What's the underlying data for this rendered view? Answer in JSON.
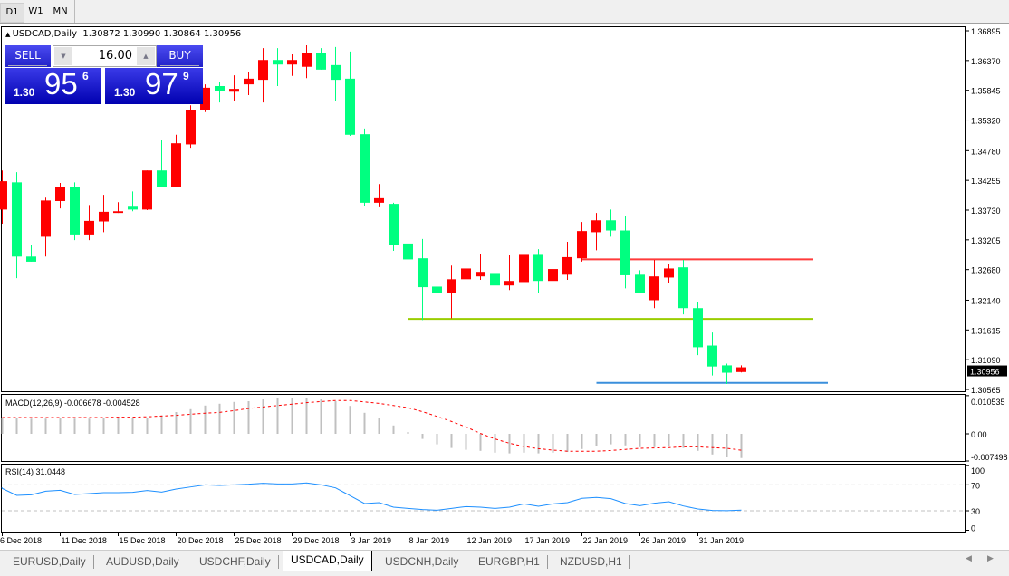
{
  "toolbar": {
    "timeframes": [
      "D1",
      "W1",
      "MN"
    ],
    "active": 0
  },
  "chart": {
    "header_symbol": "USDCAD,Daily",
    "header_ohlc": "1.30872 1.30990 1.30864 1.30956"
  },
  "trade_panel": {
    "sell_label": "SELL",
    "buy_label": "BUY",
    "volume": "16.00",
    "bid": {
      "prefix": "1.30",
      "big": "95",
      "small": "6"
    },
    "ask": {
      "prefix": "1.30",
      "big": "97",
      "small": "9"
    }
  },
  "colors": {
    "bull": "#ff0000",
    "bear": "#00ff80",
    "macd_hist": "#c0c0c0",
    "macd_signal": "#ff0000",
    "rsi": "#1e90ff"
  },
  "chart_data": [
    {
      "type": "candlestick",
      "current_price": "1.30956",
      "y_ticks": [
        "1.36895",
        "1.36370",
        "1.35845",
        "1.35320",
        "1.34780",
        "1.34255",
        "1.33730",
        "1.33205",
        "1.32680",
        "1.32140",
        "1.31615",
        "1.31090",
        "1.30565"
      ],
      "x_tick_labels": [
        "6 Dec 2018",
        "11 Dec 2018",
        "15 Dec 2018",
        "20 Dec 2018",
        "25 Dec 2018",
        "29 Dec 2018",
        "3 Jan 2019",
        "8 Jan 2019",
        "12 Jan 2019",
        "17 Jan 2019",
        "22 Jan 2019",
        "26 Jan 2019",
        "31 Jan 2019"
      ],
      "candles": [
        [
          1.3374,
          1.3443,
          1.3349,
          1.3424
        ],
        [
          1.3422,
          1.344,
          1.3253,
          1.3291
        ],
        [
          1.3291,
          1.3312,
          1.3282,
          1.3282
        ],
        [
          1.3326,
          1.3395,
          1.3291,
          1.339
        ],
        [
          1.3389,
          1.3421,
          1.3376,
          1.3413
        ],
        [
          1.3413,
          1.3422,
          1.332,
          1.333
        ],
        [
          1.333,
          1.3382,
          1.332,
          1.3354
        ],
        [
          1.3353,
          1.34,
          1.3334,
          1.337
        ],
        [
          1.3368,
          1.3387,
          1.3368,
          1.3371
        ],
        [
          1.3379,
          1.3406,
          1.3371,
          1.3374
        ],
        [
          1.3374,
          1.3443,
          1.3373,
          1.3443
        ],
        [
          1.3443,
          1.3496,
          1.3413,
          1.3413
        ],
        [
          1.3413,
          1.3506,
          1.3413,
          1.3491
        ],
        [
          1.3489,
          1.3558,
          1.3483,
          1.355
        ],
        [
          1.355,
          1.3595,
          1.3546,
          1.3589
        ],
        [
          1.3592,
          1.36,
          1.3563,
          1.3584
        ],
        [
          1.3582,
          1.3611,
          1.3565,
          1.3587
        ],
        [
          1.3595,
          1.3617,
          1.3576,
          1.3605
        ],
        [
          1.3603,
          1.3659,
          1.3563,
          1.3638
        ],
        [
          1.3638,
          1.3659,
          1.3592,
          1.363
        ],
        [
          1.363,
          1.3648,
          1.361,
          1.3638
        ],
        [
          1.3626,
          1.3664,
          1.3606,
          1.3651
        ],
        [
          1.3651,
          1.3659,
          1.3621,
          1.3621
        ],
        [
          1.3629,
          1.3661,
          1.3566,
          1.3603
        ],
        [
          1.3605,
          1.3653,
          1.3504,
          1.3506
        ],
        [
          1.3507,
          1.3517,
          1.3381,
          1.3386
        ],
        [
          1.3386,
          1.3419,
          1.3378,
          1.3394
        ],
        [
          1.3384,
          1.3386,
          1.3301,
          1.3312
        ],
        [
          1.3314,
          1.3315,
          1.3265,
          1.3286
        ],
        [
          1.3288,
          1.3322,
          1.3179,
          1.3237
        ],
        [
          1.3238,
          1.3258,
          1.3194,
          1.3227
        ],
        [
          1.3226,
          1.3275,
          1.3182,
          1.3251
        ],
        [
          1.3251,
          1.327,
          1.3248,
          1.327
        ],
        [
          1.3256,
          1.3296,
          1.325,
          1.3264
        ],
        [
          1.3262,
          1.3283,
          1.3224,
          1.324
        ],
        [
          1.324,
          1.3293,
          1.3232,
          1.3248
        ],
        [
          1.3246,
          1.3318,
          1.3235,
          1.3294
        ],
        [
          1.3294,
          1.3304,
          1.3226,
          1.3248
        ],
        [
          1.3248,
          1.3274,
          1.3237,
          1.3269
        ],
        [
          1.3259,
          1.3317,
          1.325,
          1.329
        ],
        [
          1.3288,
          1.3352,
          1.3282,
          1.3336
        ],
        [
          1.3334,
          1.3368,
          1.3302,
          1.3355
        ],
        [
          1.3355,
          1.3374,
          1.3326,
          1.3337
        ],
        [
          1.3337,
          1.3362,
          1.3235,
          1.3258
        ],
        [
          1.3259,
          1.3267,
          1.3226,
          1.3226
        ],
        [
          1.3214,
          1.3285,
          1.32,
          1.3256
        ],
        [
          1.3254,
          1.3277,
          1.3245,
          1.327
        ],
        [
          1.3272,
          1.3285,
          1.3189,
          1.32
        ],
        [
          1.32,
          1.321,
          1.3117,
          1.3131
        ],
        [
          1.3134,
          1.3157,
          1.3081,
          1.3097
        ],
        [
          1.3099,
          1.3102,
          1.3066,
          1.3086
        ],
        [
          1.30872,
          1.3099,
          1.30864,
          1.30956
        ]
      ],
      "horizontal_lines": [
        {
          "price": 1.3286,
          "color": "#ff3b3b",
          "from_candle": 40
        },
        {
          "price": 1.3181,
          "color": "#9acd00",
          "from_candle": 28
        },
        {
          "price": 1.3068,
          "color": "#3a8fdc",
          "from_candle": 41
        }
      ]
    },
    {
      "type": "macd",
      "label": "MACD(12,26,9) -0.006678 -0.004528",
      "y_ticks": [
        "0.010535",
        "0.00",
        "-0.007498"
      ],
      "ylim": [
        -0.007498,
        0.010535
      ],
      "histogram": [
        0.0043,
        0.0043,
        0.0042,
        0.0042,
        0.0043,
        0.0042,
        0.0042,
        0.0043,
        0.0043,
        0.0043,
        0.0045,
        0.0051,
        0.006,
        0.0068,
        0.0078,
        0.0083,
        0.0088,
        0.009,
        0.0095,
        0.0098,
        0.0098,
        0.0098,
        0.0095,
        0.009,
        0.0077,
        0.0058,
        0.0043,
        0.0023,
        0.0005,
        -0.0014,
        -0.0029,
        -0.0039,
        -0.0044,
        -0.0047,
        -0.0052,
        -0.0054,
        -0.0052,
        -0.0054,
        -0.0052,
        -0.005,
        -0.0042,
        -0.0035,
        -0.0029,
        -0.0032,
        -0.0037,
        -0.0037,
        -0.0035,
        -0.0039,
        -0.0047,
        -0.0057,
        -0.0065,
        -0.006678
      ],
      "signal": [
        0.0045,
        0.0045,
        0.0045,
        0.0045,
        0.0045,
        0.0045,
        0.0045,
        0.0045,
        0.0046,
        0.0046,
        0.0047,
        0.0049,
        0.0051,
        0.0054,
        0.0057,
        0.0059,
        0.0064,
        0.007,
        0.0074,
        0.0078,
        0.0082,
        0.0086,
        0.0089,
        0.0092,
        0.0092,
        0.0088,
        0.0084,
        0.0078,
        0.0072,
        0.0061,
        0.0048,
        0.0034,
        0.0019,
        0.0001,
        -0.0014,
        -0.0026,
        -0.0035,
        -0.0041,
        -0.0045,
        -0.0048,
        -0.0048,
        -0.0048,
        -0.0046,
        -0.0043,
        -0.004,
        -0.0039,
        -0.0038,
        -0.0036,
        -0.0036,
        -0.0038,
        -0.004,
        -0.004528
      ]
    },
    {
      "type": "line",
      "label": "RSI(14) 31.0448",
      "y_ticks": [
        "100",
        "70",
        "30",
        "0"
      ],
      "levels": [
        70,
        30
      ],
      "values": [
        64.4,
        53.7,
        54.6,
        60.2,
        61.6,
        55.1,
        56.5,
        57.9,
        57.9,
        58.4,
        61.2,
        58.8,
        63.5,
        66.7,
        70,
        69,
        70,
        70.9,
        72.3,
        71.4,
        71.4,
        72.8,
        70,
        65.3,
        53.3,
        41.2,
        42.6,
        35.6,
        33.7,
        31.9,
        30.9,
        33.7,
        36.5,
        35.6,
        33.7,
        35.6,
        40.7,
        37.0,
        40.7,
        42.6,
        49.1,
        50.5,
        48.6,
        41.2,
        37.9,
        41.6,
        43.9,
        37.4,
        32.8,
        30.5,
        30.2,
        31.0448
      ]
    }
  ],
  "tabs": {
    "items": [
      "EURUSD,Daily",
      "AUDUSD,Daily",
      "USDCHF,Daily",
      "USDCAD,Daily",
      "USDCNH,Daily",
      "EURGBP,H1",
      "NZDUSD,H1"
    ],
    "active": 3
  },
  "icons": {
    "collapse": "triangle-up-icon",
    "spin_down": "triangle-down-icon",
    "spin_up": "triangle-up-icon",
    "scroll_left": "scroll-left-icon",
    "scroll_right": "scroll-right-icon"
  }
}
